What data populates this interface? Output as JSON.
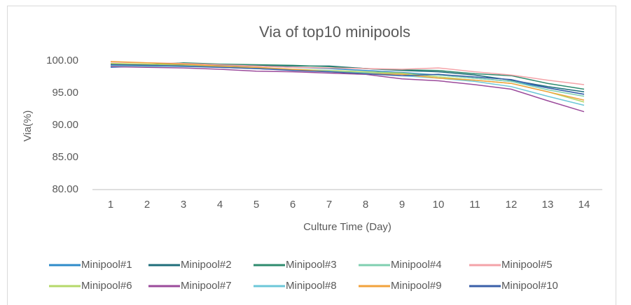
{
  "chart_data": {
    "type": "line",
    "title": "Via of top10 minipools",
    "x_label": "Culture Time (Day)",
    "y_label": "Via(%)",
    "categories": [
      "1",
      "2",
      "3",
      "4",
      "5",
      "6",
      "7",
      "8",
      "9",
      "10",
      "11",
      "12",
      "13",
      "14"
    ],
    "ylim": [
      80,
      100
    ],
    "yticks": [
      {
        "value": 80,
        "label": "80.00"
      },
      {
        "value": 85,
        "label": "85.00"
      },
      {
        "value": 90,
        "label": "90.00"
      },
      {
        "value": 95,
        "label": "95.00"
      },
      {
        "value": 100,
        "label": "100.00"
      }
    ],
    "grid": false,
    "legend": "bottom",
    "series": [
      {
        "name": "Minipool#1",
        "color": "#2e8bc9",
        "values": [
          99.0,
          99.2,
          99.3,
          99.3,
          99.2,
          99.0,
          98.8,
          98.5,
          98.2,
          97.8,
          97.3,
          96.8,
          95.8,
          94.8
        ]
      },
      {
        "name": "Minipool#2",
        "color": "#1f6e7a",
        "values": [
          99.3,
          99.4,
          99.5,
          99.4,
          99.3,
          99.2,
          99.2,
          98.8,
          98.5,
          98.3,
          97.8,
          97.0,
          96.0,
          95.2
        ]
      },
      {
        "name": "Minipool#3",
        "color": "#2e8b6e",
        "values": [
          99.5,
          99.4,
          99.7,
          99.5,
          99.4,
          99.3,
          99.1,
          98.8,
          98.6,
          98.5,
          98.0,
          97.7,
          96.5,
          95.6
        ]
      },
      {
        "name": "Minipool#4",
        "color": "#7fcfb0",
        "values": [
          99.2,
          99.1,
          99.2,
          99.0,
          98.8,
          98.6,
          98.4,
          98.2,
          98.0,
          97.8,
          97.3,
          96.8,
          95.5,
          94.5
        ]
      },
      {
        "name": "Minipool#5",
        "color": "#f4a3a8",
        "values": [
          99.8,
          99.7,
          99.6,
          99.4,
          99.2,
          99.0,
          98.9,
          98.8,
          98.7,
          98.9,
          98.3,
          97.8,
          97.0,
          96.3
        ]
      },
      {
        "name": "Minipool#6",
        "color": "#b5d86a",
        "values": [
          99.6,
          99.5,
          99.3,
          99.1,
          98.9,
          98.7,
          98.5,
          98.3,
          98.1,
          97.5,
          97.0,
          96.5,
          95.2,
          93.6
        ]
      },
      {
        "name": "Minipool#7",
        "color": "#9b4a9b",
        "values": [
          99.1,
          99.0,
          98.9,
          98.7,
          98.4,
          98.3,
          98.1,
          97.9,
          97.2,
          96.9,
          96.3,
          95.6,
          93.8,
          92.1
        ]
      },
      {
        "name": "Minipool#8",
        "color": "#6cc7d8",
        "values": [
          99.3,
          99.2,
          99.1,
          99.0,
          98.8,
          98.6,
          98.4,
          98.0,
          97.7,
          97.3,
          96.8,
          96.0,
          94.5,
          93.1
        ]
      },
      {
        "name": "Minipool#9",
        "color": "#f2a23c",
        "values": [
          99.9,
          99.7,
          99.5,
          99.2,
          99.0,
          98.7,
          98.3,
          98.0,
          97.9,
          97.3,
          97.0,
          96.5,
          95.2,
          93.9
        ]
      },
      {
        "name": "Minipool#10",
        "color": "#3a5fa8",
        "values": [
          99.4,
          99.3,
          99.2,
          99.0,
          98.8,
          98.5,
          98.3,
          98.0,
          97.7,
          97.9,
          97.5,
          97.1,
          95.8,
          94.8
        ]
      }
    ]
  }
}
